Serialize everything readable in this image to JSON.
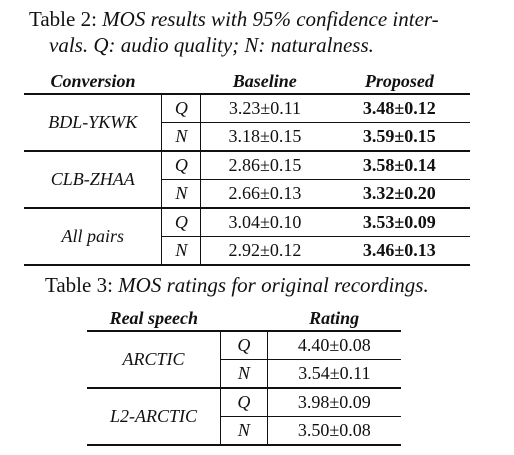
{
  "table2": {
    "caption_label": "Table 2:",
    "caption_line1": "MOS results with 95% confidence inter-",
    "caption_line2": "vals. Q: audio quality; N: naturalness.",
    "headers": {
      "conversion": "Conversion",
      "baseline": "Baseline",
      "proposed": "Proposed"
    },
    "groups": [
      {
        "pair": "BDL-YKWK",
        "rows": [
          {
            "metric": "Q",
            "baseline": "3.23±0.11",
            "proposed": "3.48±0.12"
          },
          {
            "metric": "N",
            "baseline": "3.18±0.15",
            "proposed": "3.59±0.15"
          }
        ]
      },
      {
        "pair": "CLB-ZHAA",
        "rows": [
          {
            "metric": "Q",
            "baseline": "2.86±0.15",
            "proposed": "3.58±0.14"
          },
          {
            "metric": "N",
            "baseline": "2.66±0.13",
            "proposed": "3.32±0.20"
          }
        ]
      },
      {
        "pair": "All pairs",
        "rows": [
          {
            "metric": "Q",
            "baseline": "3.04±0.10",
            "proposed": "3.53±0.09"
          },
          {
            "metric": "N",
            "baseline": "2.92±0.12",
            "proposed": "3.46±0.13"
          }
        ]
      }
    ]
  },
  "table3": {
    "caption_label": "Table 3:",
    "caption_text": "MOS ratings for original recordings.",
    "headers": {
      "real_speech": "Real speech",
      "rating": "Rating"
    },
    "groups": [
      {
        "corpus": "ARCTIC",
        "rows": [
          {
            "metric": "Q",
            "rating": "4.40±0.08"
          },
          {
            "metric": "N",
            "rating": "3.54±0.11"
          }
        ]
      },
      {
        "corpus": "L2-ARCTIC",
        "rows": [
          {
            "metric": "Q",
            "rating": "3.98±0.09"
          },
          {
            "metric": "N",
            "rating": "3.50±0.08"
          }
        ]
      }
    ]
  }
}
